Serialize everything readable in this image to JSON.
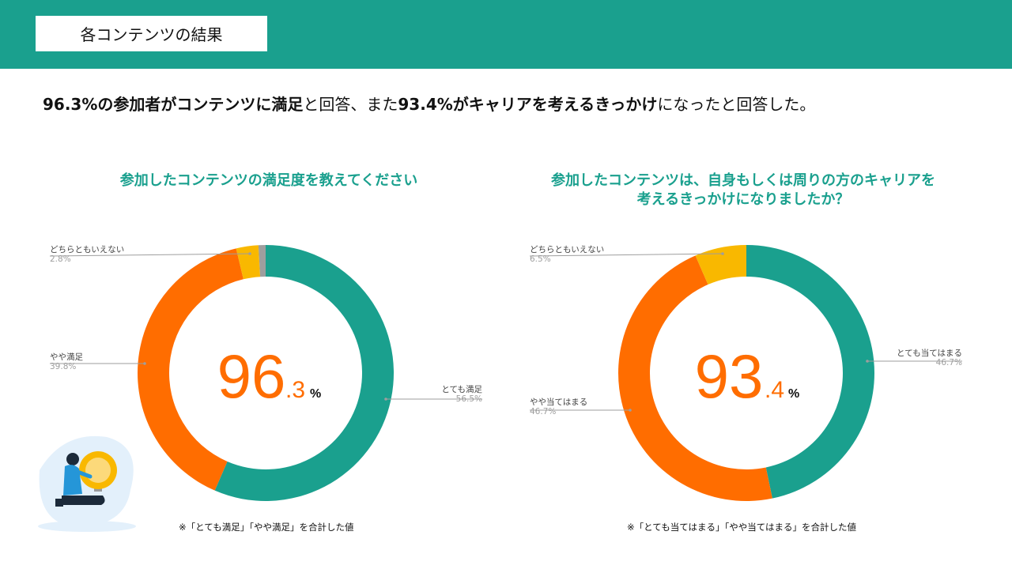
{
  "header": {
    "title": "各コンテンツの結果"
  },
  "headline": {
    "p1": "96.3%の参加者がコンテンツに満足",
    "p2": "と回答、また",
    "p3": "93.4%がキャリアを考えるきっかけ",
    "p4": "になったと回答した。"
  },
  "chart_data": [
    {
      "type": "pie",
      "title": "参加したコンテンツの満足度を教えてください",
      "center_value": "96",
      "center_decimal": ".3",
      "center_unit": "%",
      "note": "※「とても満足」「やや満足」を合計した値",
      "slices": [
        {
          "label": "とても満足",
          "value": 56.5,
          "value_label": "56.5%",
          "color": "#1aa08e"
        },
        {
          "label": "やや満足",
          "value": 39.8,
          "value_label": "39.8%",
          "color": "#ff6d00"
        },
        {
          "label": "どちらともいえない",
          "value": 2.8,
          "value_label": "2.8%",
          "color": "#f9b800"
        },
        {
          "label": "",
          "value": 0.9,
          "value_label": "",
          "color": "#9e9e9e"
        }
      ]
    },
    {
      "type": "pie",
      "title": "参加したコンテンツは、自身もしくは周りの方のキャリアを 考えるきっかけになりましたか？",
      "title_line1": "参加したコンテンツは、自身もしくは周りの方のキャリアを",
      "title_line2": "考えるきっかけになりましたか？",
      "center_value": "93",
      "center_decimal": ".4",
      "center_unit": "%",
      "note": "※「とても当てはまる」「やや当てはまる」を合計した値",
      "slices": [
        {
          "label": "とても当てはまる",
          "value": 46.7,
          "value_label": "46.7%",
          "color": "#1aa08e"
        },
        {
          "label": "やや当てはまる",
          "value": 46.7,
          "value_label": "46.7%",
          "color": "#ff6d00"
        },
        {
          "label": "どちらともいえない",
          "value": 6.5,
          "value_label": "6.5%",
          "color": "#f9b800"
        }
      ]
    }
  ]
}
